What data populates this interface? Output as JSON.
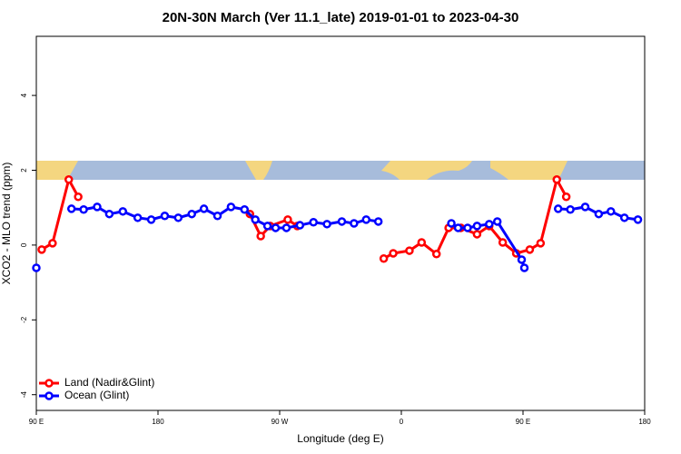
{
  "chart_data": {
    "type": "line",
    "title": "20N-30N March (Ver 11.1_late)   2019-01-01 to 2023-04-30",
    "x_label": "Longitude (deg E)",
    "y_label": "XCO2 - MLO trend (ppm)",
    "xlim": [
      90,
      540
    ],
    "xticks": [
      {
        "value": 90,
        "label": "90 E"
      },
      {
        "value": 180,
        "label": "180"
      },
      {
        "value": 270,
        "label": "90 W"
      },
      {
        "value": 360,
        "label": "0"
      },
      {
        "value": 450,
        "label": "90 E"
      },
      {
        "value": 540,
        "label": "180"
      }
    ],
    "ylim": [
      -4.42,
      5.58
    ],
    "yticks": [
      -4,
      -2,
      0,
      2,
      4
    ],
    "legend": "bottom-left",
    "series": [
      {
        "name": "Land (Nadir&Glint)",
        "color": "#ff0000",
        "x": [
          94,
          102,
          114,
          121,
          null,
          248,
          256,
          263,
          276,
          283,
          null,
          347,
          354,
          366,
          375,
          386,
          395,
          404,
          416,
          425,
          435,
          445,
          455,
          463,
          475,
          482
        ],
        "values": [
          -0.12,
          0.05,
          1.75,
          1.29,
          null,
          0.83,
          0.24,
          0.51,
          0.68,
          0.51,
          null,
          -0.36,
          -0.22,
          -0.15,
          0.07,
          -0.24,
          0.46,
          0.46,
          0.29,
          0.51,
          0.07,
          -0.22,
          -0.12,
          0.05,
          1.75,
          1.29
        ]
      },
      {
        "name": "Ocean (Glint)",
        "color": "#0000ff",
        "x": [
          90,
          null,
          116,
          125,
          135,
          144,
          154,
          165,
          175,
          185,
          195,
          205,
          214,
          224,
          234,
          244,
          252,
          261,
          267,
          275,
          285,
          295,
          305,
          316,
          325,
          334,
          343,
          null,
          397,
          402,
          409,
          416,
          425,
          431,
          449,
          451,
          null,
          476,
          485,
          496,
          506,
          515,
          525,
          535
        ],
        "values": [
          -0.61,
          null,
          0.97,
          0.95,
          1.02,
          0.83,
          0.9,
          0.73,
          0.68,
          0.78,
          0.73,
          0.83,
          0.97,
          0.78,
          1.02,
          0.95,
          0.68,
          0.51,
          0.46,
          0.46,
          0.53,
          0.61,
          0.56,
          0.63,
          0.58,
          0.68,
          0.63,
          null,
          0.58,
          0.46,
          0.46,
          0.51,
          0.56,
          0.63,
          -0.39,
          -0.61,
          null,
          0.97,
          0.95,
          1.02,
          0.83,
          0.9,
          0.73,
          0.68
        ]
      }
    ]
  }
}
